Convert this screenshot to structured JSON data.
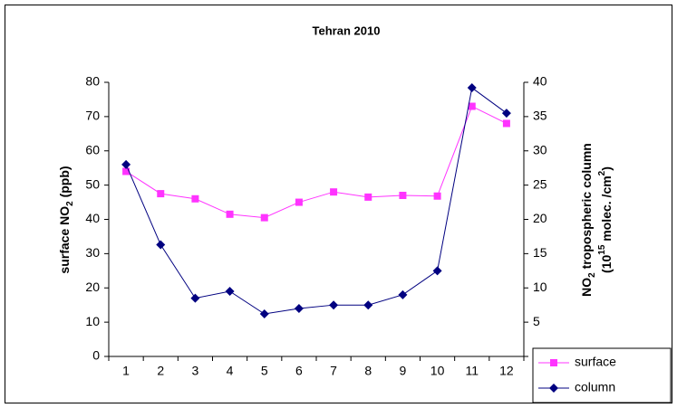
{
  "chart_data": {
    "type": "line",
    "title": "Tehran 2010",
    "y_label": [
      "surface NO",
      "2",
      " (ppb)"
    ],
    "y2_label": [
      [
        "NO",
        "2",
        " tropospheric column"
      ],
      [
        "(10",
        "15",
        " molec. /cm",
        "2",
        ")"
      ]
    ],
    "categories": [
      "1",
      "2",
      "3",
      "4",
      "5",
      "6",
      "7",
      "8",
      "9",
      "10",
      "11",
      "12"
    ],
    "series": [
      {
        "name": "surface",
        "color": "#ff33ff",
        "marker": "square",
        "values": [
          54,
          47.5,
          46,
          41.5,
          40.5,
          45,
          48,
          46.5,
          47,
          46.8,
          73,
          68
        ]
      },
      {
        "name": "column",
        "color": "#000080",
        "marker": "diamond",
        "axis": "y2",
        "values": [
          28,
          16.3,
          8.5,
          9.5,
          6.2,
          7,
          7.5,
          7.5,
          9,
          12.5,
          39.2,
          35.5
        ]
      }
    ],
    "ylim": [
      0,
      80
    ],
    "yticks": [
      0,
      10,
      20,
      30,
      40,
      50,
      60,
      70,
      80
    ],
    "y2lim": [
      0,
      40
    ],
    "y2ticks": [
      0,
      5,
      10,
      15,
      20,
      25,
      30,
      35,
      40
    ],
    "grid": false,
    "legend": "lower right"
  }
}
